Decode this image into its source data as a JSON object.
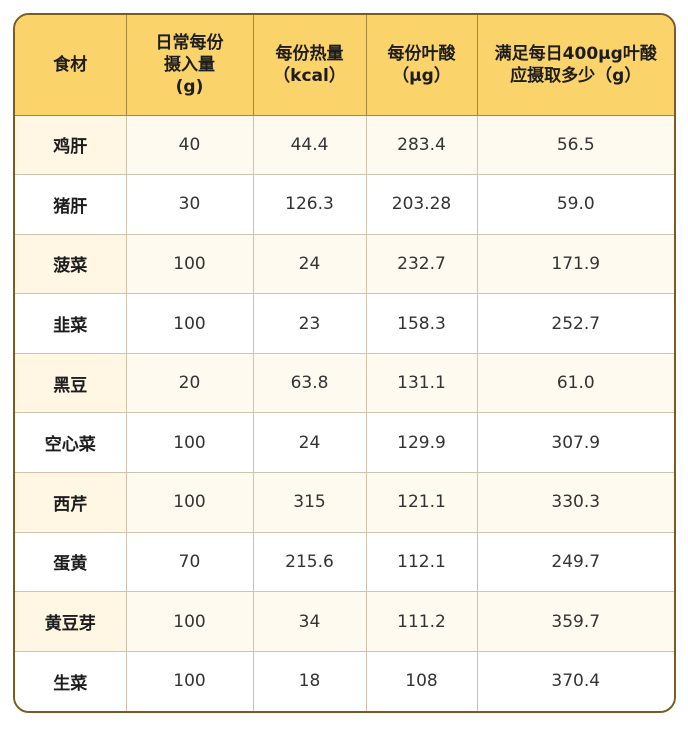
{
  "table": {
    "headers": [
      [
        "食材"
      ],
      [
        "日常每份",
        "摄入量",
        "(g)"
      ],
      [
        "每份热量",
        "（kcal）"
      ],
      [
        "每份叶酸",
        "（μg）"
      ],
      [
        "满足每日400μg叶酸",
        "应摄取多少（g）"
      ]
    ],
    "rows": [
      [
        "鸡肝",
        "40",
        "44.4",
        "283.4",
        "56.5"
      ],
      [
        "猪肝",
        "30",
        "126.3",
        "203.28",
        "59.0"
      ],
      [
        "菠菜",
        "100",
        "24",
        "232.7",
        "171.9"
      ],
      [
        "韭菜",
        "100",
        "23",
        "158.3",
        "252.7"
      ],
      [
        "黑豆",
        "20",
        "63.8",
        "131.1",
        "61.0"
      ],
      [
        "空心菜",
        "100",
        "24",
        "129.9",
        "307.9"
      ],
      [
        "西芹",
        "100",
        "315",
        "121.1",
        "330.3"
      ],
      [
        "蛋黄",
        "70",
        "215.6",
        "112.1",
        "249.7"
      ],
      [
        "黄豆芽",
        "100",
        "34",
        "111.2",
        "359.7"
      ],
      [
        "生菜",
        "100",
        "18",
        "108",
        "370.4"
      ]
    ]
  },
  "colors": {
    "header_bg": "#fbd36b",
    "border": "#7a5c22",
    "row_alt": "#fffaf0"
  }
}
